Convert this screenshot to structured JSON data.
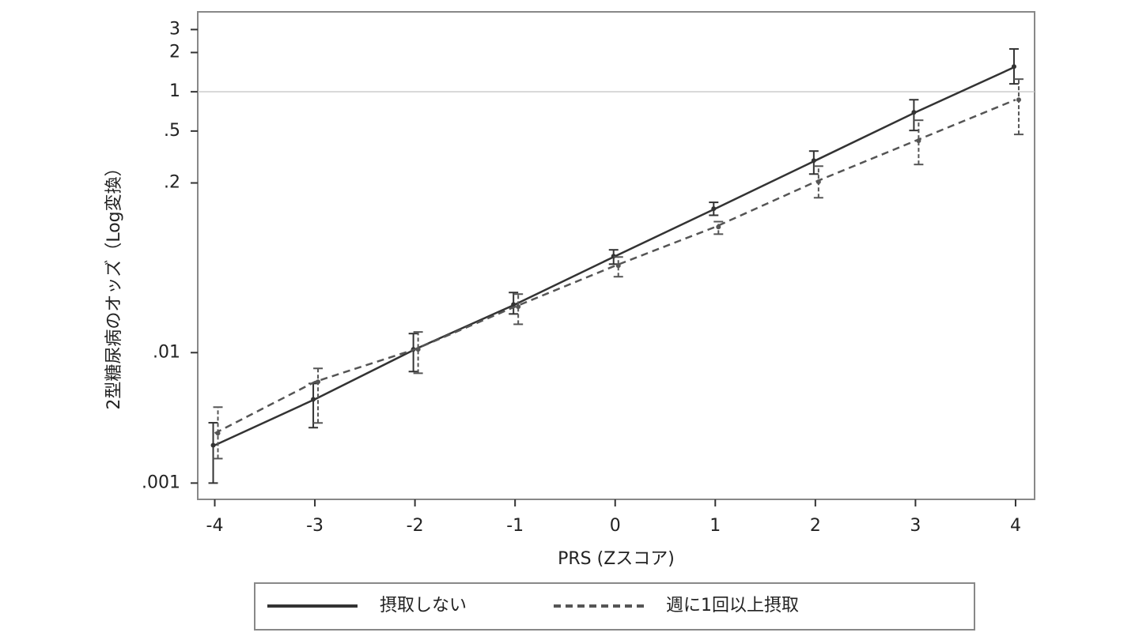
{
  "chart_data": {
    "type": "line",
    "x_label": "PRS (Zスコア)",
    "y_label": "2型糖尿病のオッズ（Log変換）",
    "x": [
      -4,
      -3,
      -2,
      -1,
      0,
      1,
      2,
      3,
      4
    ],
    "series": [
      {
        "name": "摂取しない",
        "color": "#333333",
        "linestyle": "solid",
        "values": [
          0.00195,
          0.00439,
          0.0106,
          0.0234,
          0.0549,
          0.127,
          0.297,
          0.696,
          1.56
        ],
        "lower": [
          0.001,
          0.00266,
          0.00716,
          0.0198,
          0.0477,
          0.113,
          0.234,
          0.505,
          1.15
        ],
        "upper": [
          0.0029,
          0.0058,
          0.014,
          0.0289,
          0.0614,
          0.142,
          0.351,
          0.869,
          2.13
        ]
      },
      {
        "name": "週に1回以上摂取",
        "color": "#555555",
        "linestyle": "dashed",
        "values": [
          0.00241,
          0.00597,
          0.0106,
          0.0225,
          0.0464,
          0.092,
          0.204,
          0.421,
          0.869
        ],
        "lower": [
          0.00154,
          0.00289,
          0.00695,
          0.0165,
          0.0382,
          0.081,
          0.154,
          0.277,
          0.471
        ],
        "upper": [
          0.00382,
          0.00757,
          0.0144,
          0.0281,
          0.0541,
          0.101,
          0.269,
          0.605,
          1.25
        ]
      }
    ],
    "xlim": [
      -4.17,
      4.19
    ],
    "xticks": [
      -4,
      -3,
      -2,
      -1,
      0,
      1,
      2,
      3,
      4
    ],
    "ylim": [
      0.00075,
      4.1
    ],
    "ylog": true,
    "yticks": [
      {
        "value": 0.001,
        "label": ".001"
      },
      {
        "value": 0.01,
        "label": ".01"
      },
      {
        "value": 0.2,
        "label": ".2"
      },
      {
        "value": 0.5,
        "label": ".5"
      },
      1,
      2,
      3
    ],
    "reference_line": 1,
    "legend": "bottom"
  }
}
